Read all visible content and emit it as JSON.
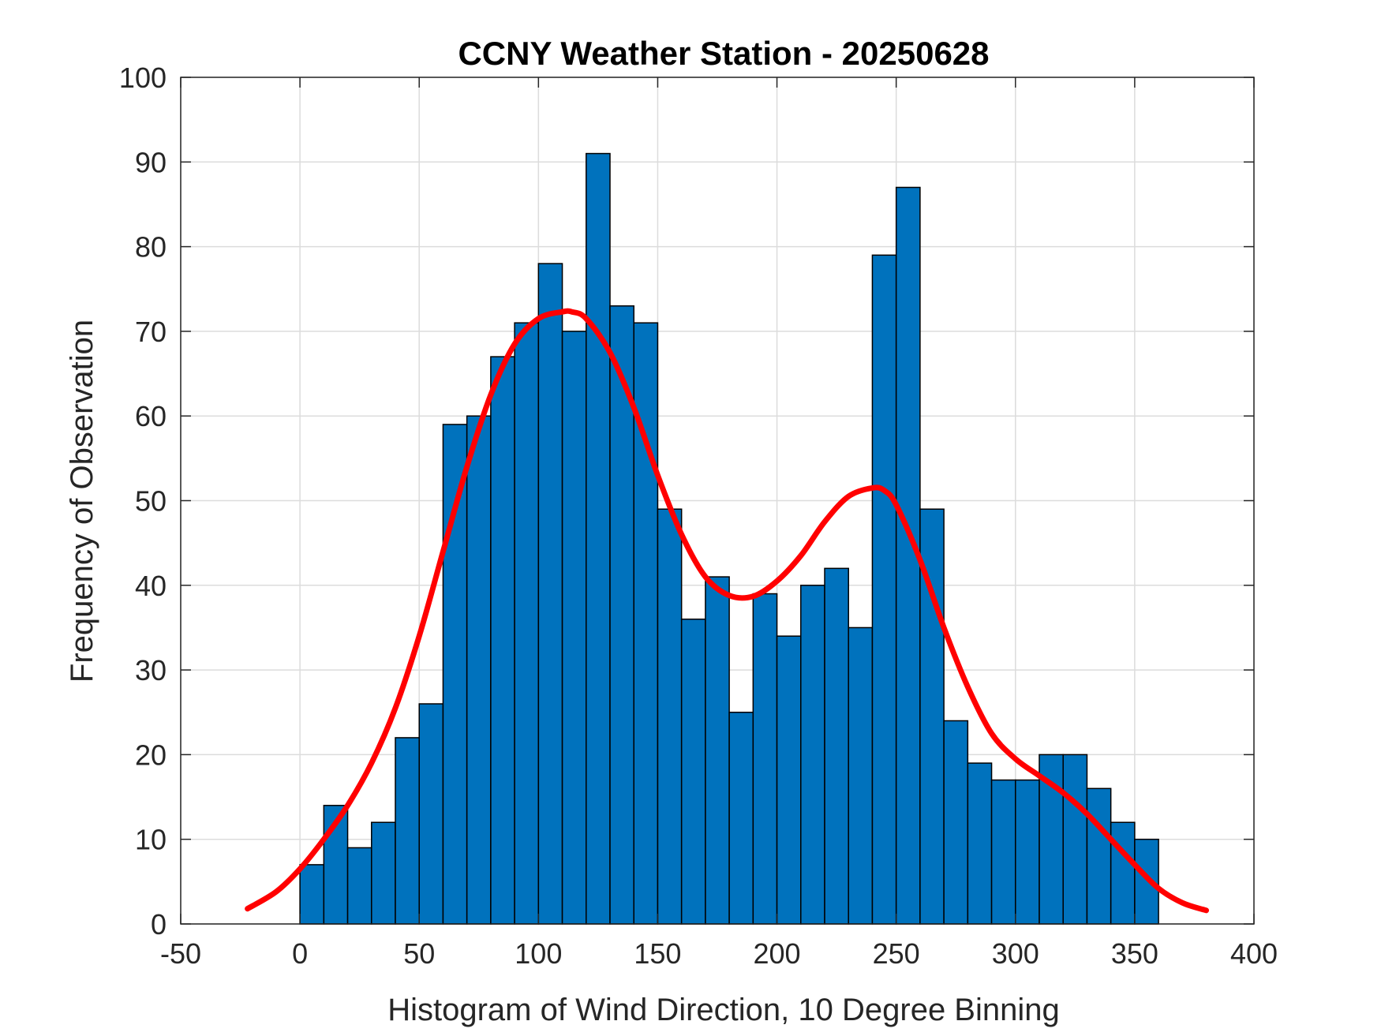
{
  "chart_data": {
    "type": "bar",
    "title": "CCNY Weather Station - 20250628",
    "xlabel": "Histogram of Wind Direction, 10 Degree Binning",
    "ylabel": "Frequency of Observation",
    "xlim": [
      -50,
      400
    ],
    "ylim": [
      0,
      100
    ],
    "xticks": [
      -50,
      0,
      50,
      100,
      150,
      200,
      250,
      300,
      350,
      400
    ],
    "yticks": [
      0,
      10,
      20,
      30,
      40,
      50,
      60,
      70,
      80,
      90,
      100
    ],
    "grid": true,
    "bin_width": 10,
    "bin_starts": [
      0,
      10,
      20,
      30,
      40,
      50,
      60,
      70,
      80,
      90,
      100,
      110,
      120,
      130,
      140,
      150,
      160,
      170,
      180,
      190,
      200,
      210,
      220,
      230,
      240,
      250,
      260,
      270,
      280,
      290,
      300,
      310,
      320,
      330,
      340,
      350
    ],
    "values": [
      7,
      14,
      9,
      12,
      22,
      26,
      59,
      60,
      67,
      71,
      78,
      70,
      91,
      73,
      71,
      49,
      36,
      41,
      25,
      39,
      34,
      40,
      42,
      35,
      79,
      87,
      49,
      24,
      19,
      17,
      17,
      20,
      20,
      16,
      12,
      10
    ],
    "fit_curve": {
      "x": [
        -22,
        -10,
        0,
        10,
        20,
        30,
        40,
        50,
        60,
        70,
        80,
        90,
        100,
        110,
        114,
        120,
        130,
        140,
        150,
        160,
        170,
        180,
        190,
        200,
        210,
        220,
        230,
        240,
        245,
        250,
        260,
        270,
        280,
        290,
        300,
        310,
        320,
        330,
        340,
        350,
        360,
        370,
        380
      ],
      "y": [
        1.8,
        3.8,
        6.5,
        10,
        14,
        19,
        25.5,
        34,
        44,
        54,
        62.5,
        68.5,
        71.5,
        72.3,
        72.3,
        71.5,
        67.5,
        61,
        53,
        46,
        41,
        38.8,
        38.7,
        40.5,
        43.5,
        47.5,
        50.5,
        51.5,
        51.2,
        49.5,
        43,
        35,
        28,
        22.5,
        19.5,
        17.5,
        15.5,
        13,
        10,
        7,
        4.2,
        2.5,
        1.6
      ]
    },
    "colors": {
      "bar_fill": "#0072BD",
      "bar_edge": "#000000",
      "curve": "#FF0000",
      "grid": "#dcdcdc",
      "axis": "#262626"
    }
  }
}
